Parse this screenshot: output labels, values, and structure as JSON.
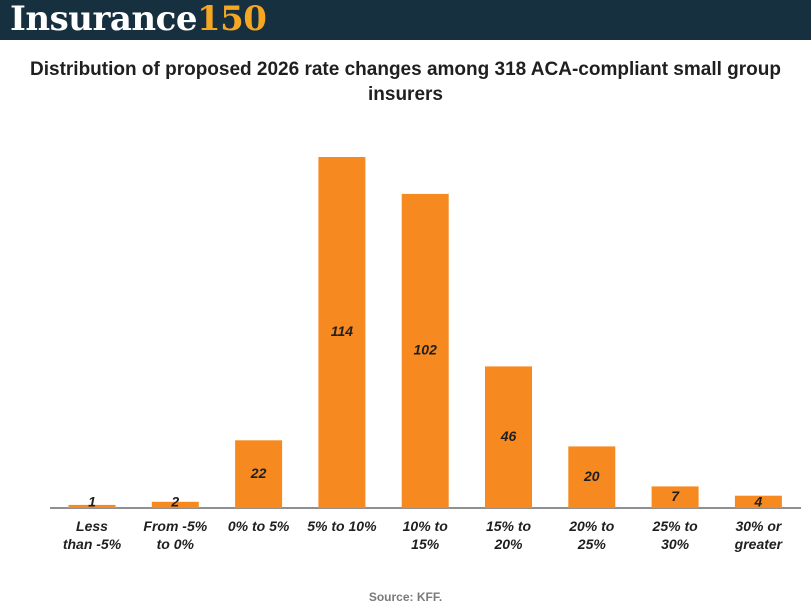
{
  "header": {
    "logo_word": "Insurance",
    "logo_number": "150"
  },
  "chart_data": {
    "type": "bar",
    "title": "Distribution of proposed 2026 rate changes among 318 ACA-compliant small group insurers",
    "categories": [
      [
        "Less",
        "than -5%"
      ],
      [
        "From -5%",
        "to 0%"
      ],
      [
        "0% to 5%"
      ],
      [
        "5% to 10%"
      ],
      [
        "10% to",
        "15%"
      ],
      [
        "15% to",
        "20%"
      ],
      [
        "20% to",
        "25%"
      ],
      [
        "25% to",
        "30%"
      ],
      [
        "30% or",
        "greater"
      ]
    ],
    "values": [
      1,
      2,
      22,
      114,
      102,
      46,
      20,
      7,
      4
    ],
    "ylim": [
      0,
      114
    ],
    "grid": false,
    "bar_color": "#f68a21",
    "source": "Source: KFF."
  }
}
